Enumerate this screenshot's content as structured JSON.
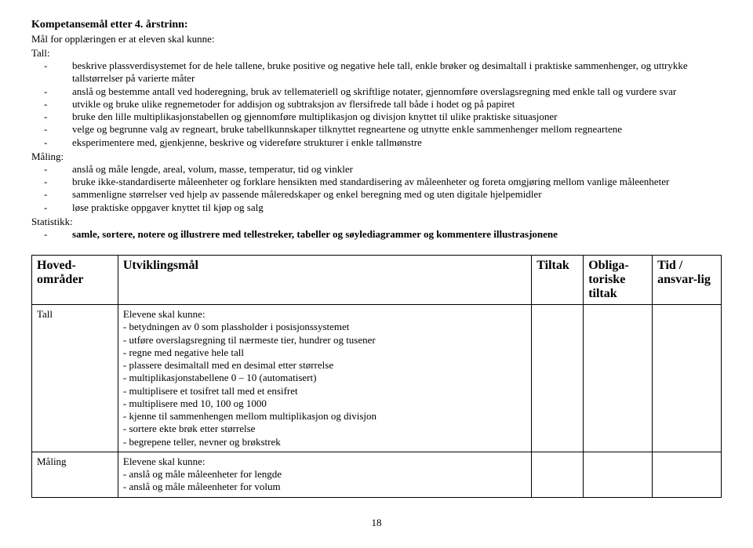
{
  "title": "Kompetansemål etter 4. årstrinn:",
  "subtitle": "Mål for opplæringen er at eleven skal kunne:",
  "sections": {
    "tall": {
      "label": "Tall:",
      "items": [
        "beskrive plassverdisystemet for de hele tallene,  bruke positive og negative hele tall, enkle brøker og desimaltall i praktiske sammenhenger, og uttrykke tallstørrelser på varierte måter",
        "anslå og bestemme antall ved hoderegning, bruk av tellemateriell og skriftlige notater, gjennomføre overslagsregning med enkle tall og vurdere svar",
        "utvikle og bruke ulike regnemetoder for addisjon og subtraksjon av flersifrede tall både i hodet og på papiret",
        "bruke den lille multiplikasjonstabellen og gjennomføre multiplikasjon og divisjon knyttet til ulike praktiske situasjoner",
        "velge og begrunne valg av regneart, bruke tabellkunnskaper tilknyttet regneartene og utnytte enkle sammenhenger mellom regneartene",
        "eksperimentere med, gjenkjenne, beskrive og videreføre strukturer i enkle tallmønstre"
      ]
    },
    "maling": {
      "label": "Måling:",
      "items": [
        "anslå og måle lengde, areal, volum, masse, temperatur, tid og vinkler",
        "bruke ikke-standardiserte måleenheter og forklare hensikten med standardisering av måleenheter og foreta omgjøring mellom vanlige  måleenheter",
        "sammenligne størrelser ved hjelp av passende måleredskaper og enkel beregning med og uten digitale hjelpemidler",
        "løse praktiske oppgaver knyttet til kjøp og salg"
      ]
    },
    "statistikk": {
      "label": "Statistikk:",
      "items": [
        "samle, sortere, notere og illustrere med tellestreker, tabeller og søylediagrammer og kommentere illustrasjonene"
      ]
    }
  },
  "table": {
    "headers": {
      "hoved": "Hoved-områder",
      "utv": "Utviklingsmål",
      "tiltak": "Tiltak",
      "obl": "Obliga-toriske tiltak",
      "tid": "Tid / ansvar-lig"
    },
    "rows": [
      {
        "hoved": "Tall",
        "lead": "Elevene skal kunne:",
        "lines": [
          "- betydningen av 0 som plassholder i posisjonssystemet",
          "- utføre overslagsregning til nærmeste tier, hundrer og tusener",
          "- regne med negative hele tall",
          "- plassere desimaltall med en desimal etter størrelse",
          "- multiplikasjonstabellene 0 – 10 (automatisert)",
          "- multiplisere et tosifret tall med et ensifret",
          "- multiplisere med 10, 100 og 1000",
          "- kjenne til sammenhengen mellom multiplikasjon og divisjon",
          "- sortere ekte brøk etter størrelse",
          "- begrepene teller, nevner og brøkstrek"
        ]
      },
      {
        "hoved": "Måling",
        "lead": "Elevene skal kunne:",
        "lines": [
          "- anslå og måle måleenheter for lengde",
          "- anslå og måle måleenheter for volum"
        ]
      }
    ]
  },
  "page_number": "18"
}
